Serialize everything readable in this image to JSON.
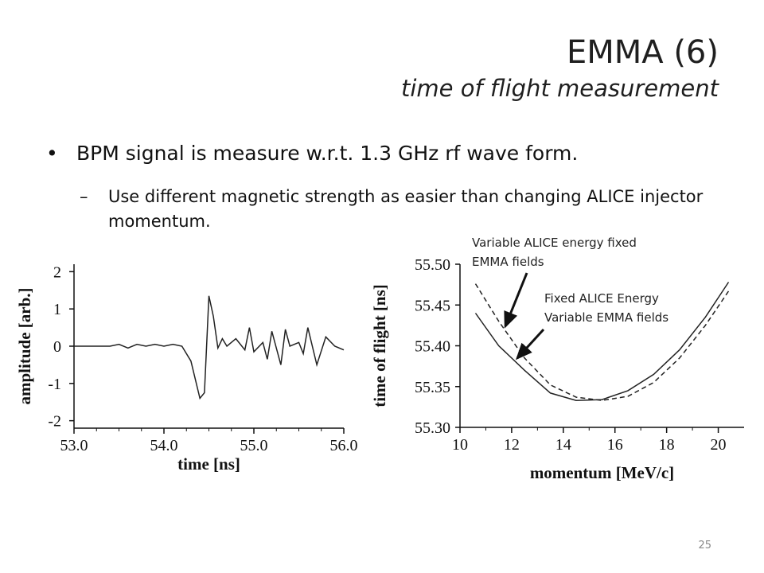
{
  "title": {
    "main": "EMMA (6)",
    "subtitle": "time of flight measurement"
  },
  "bullet": {
    "marker": "•",
    "text": "BPM signal is measure w.r.t. 1.3 GHz rf wave form."
  },
  "subbullet": {
    "marker": "–",
    "text": "Use different magnetic strength as easier than changing ALICE injector momentum."
  },
  "annotations": {
    "variable_alice": "Variable ALICE energy fixed EMMA fields",
    "fixed_alice_line1": "Fixed ALICE  Energy",
    "fixed_alice_line2": "Variable EMMA fields"
  },
  "page_number": "25",
  "chart_data": [
    {
      "type": "line",
      "xlabel": "time [ns]",
      "ylabel": "amplitude [arb.]",
      "xlim": [
        53.0,
        56.0
      ],
      "ylim": [
        -2.2,
        2.2
      ],
      "xticks": [
        "53.0",
        "54.0",
        "55.0",
        "56.0"
      ],
      "xtick_values": [
        53.0,
        54.0,
        55.0,
        56.0
      ],
      "yticks": [
        "2",
        "1",
        "0",
        "-1",
        "-2"
      ],
      "ytick_values": [
        2,
        1,
        0,
        -1,
        -2
      ],
      "series": [
        {
          "x": [
            53.0,
            53.1,
            53.2,
            53.3,
            53.4,
            53.5,
            53.6,
            53.7,
            53.8,
            53.9,
            54.0,
            54.1,
            54.2,
            54.3,
            54.4,
            54.45,
            54.5,
            54.55,
            54.6,
            54.65,
            54.7,
            54.8,
            54.9,
            54.95,
            55.0,
            55.1,
            55.15,
            55.2,
            55.3,
            55.35,
            55.4,
            55.5,
            55.55,
            55.6,
            55.7,
            55.8,
            55.9,
            56.0
          ],
          "y": [
            0.0,
            0.0,
            0.0,
            0.0,
            0.0,
            0.05,
            -0.05,
            0.05,
            0.0,
            0.05,
            0.0,
            0.05,
            0.0,
            -0.4,
            -1.4,
            -1.25,
            1.35,
            0.8,
            -0.05,
            0.2,
            0.0,
            0.2,
            -0.1,
            0.5,
            -0.15,
            0.1,
            -0.35,
            0.4,
            -0.5,
            0.45,
            0.0,
            0.1,
            -0.2,
            0.5,
            -0.5,
            0.25,
            0.0,
            -0.1
          ],
          "style": "solid"
        }
      ]
    },
    {
      "type": "line",
      "xlabel": "momentum [MeV/c]",
      "ylabel": "time of flight [ns]",
      "xlim": [
        10,
        21
      ],
      "ylim": [
        55.3,
        55.5
      ],
      "xticks": [
        "10",
        "12",
        "14",
        "16",
        "18",
        "20"
      ],
      "xtick_values": [
        10,
        12,
        14,
        16,
        18,
        20
      ],
      "yticks": [
        "55.50",
        "55.45",
        "55.40",
        "55.35",
        "55.30"
      ],
      "ytick_values": [
        55.5,
        55.45,
        55.4,
        55.35,
        55.3
      ],
      "series": [
        {
          "x": [
            10.6,
            11.5,
            12.5,
            13.5,
            14.5,
            15.5,
            16.5,
            17.5,
            18.5,
            19.5,
            20.4
          ],
          "y": [
            55.44,
            55.4,
            55.37,
            55.342,
            55.333,
            55.334,
            55.345,
            55.365,
            55.395,
            55.435,
            55.478
          ],
          "style": "solid"
        },
        {
          "x": [
            10.6,
            11.5,
            12.5,
            13.5,
            14.5,
            15.5,
            16.5,
            17.5,
            18.5,
            19.5,
            20.4
          ],
          "y": [
            55.476,
            55.43,
            55.385,
            55.352,
            55.337,
            55.333,
            55.338,
            55.355,
            55.385,
            55.425,
            55.467
          ],
          "style": "dashed"
        }
      ]
    }
  ]
}
